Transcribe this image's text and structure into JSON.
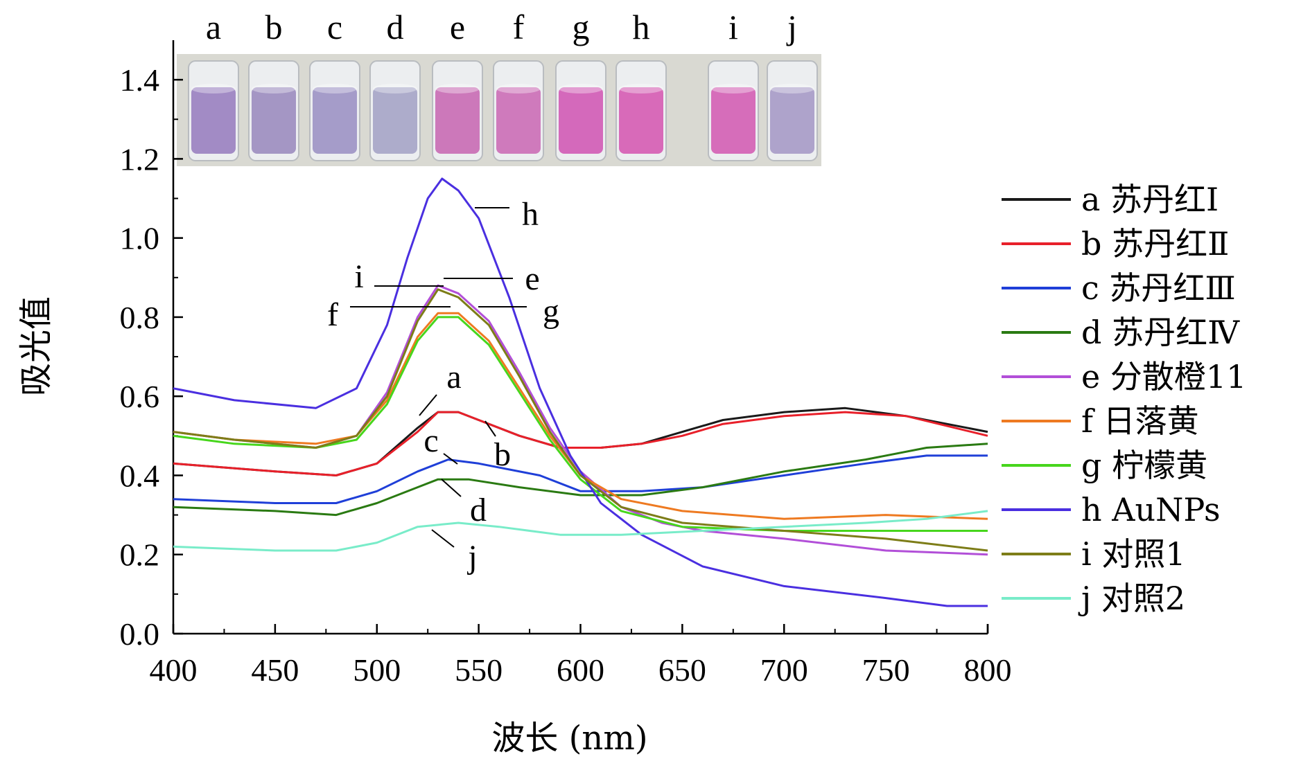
{
  "chart_data": {
    "type": "line",
    "xlabel": "波长 (nm)",
    "ylabel": "吸光值",
    "xlim": [
      400,
      800
    ],
    "ylim": [
      0,
      1.5
    ],
    "x_ticks": [
      "400",
      "450",
      "500",
      "550",
      "600",
      "650",
      "700",
      "750",
      "800"
    ],
    "y_ticks": [
      "0.0",
      "0.2",
      "0.4",
      "0.6",
      "0.8",
      "1.0",
      "1.2",
      "1.4"
    ],
    "grid": false,
    "legend_position": "right",
    "inset_photo": {
      "labels": [
        "a",
        "b",
        "c",
        "d",
        "e",
        "f",
        "g",
        "h",
        "i",
        "j"
      ],
      "vial_colors": [
        "#9a7fc0",
        "#9c8cbf",
        "#9d92c4",
        "#a6a4c6",
        "#c96ab4",
        "#cc6db6",
        "#d25ab5",
        "#d65bb2",
        "#d45eb4",
        "#a79ac6"
      ]
    },
    "series": [
      {
        "name": "a 苏丹红Ⅰ",
        "color": "#1a1a1a",
        "points": [
          [
            400,
            0.43
          ],
          [
            450,
            0.41
          ],
          [
            480,
            0.4
          ],
          [
            500,
            0.43
          ],
          [
            520,
            0.52
          ],
          [
            530,
            0.56
          ],
          [
            540,
            0.56
          ],
          [
            550,
            0.54
          ],
          [
            570,
            0.5
          ],
          [
            590,
            0.47
          ],
          [
            610,
            0.47
          ],
          [
            630,
            0.48
          ],
          [
            650,
            0.51
          ],
          [
            670,
            0.54
          ],
          [
            700,
            0.56
          ],
          [
            730,
            0.57
          ],
          [
            760,
            0.55
          ],
          [
            800,
            0.51
          ]
        ]
      },
      {
        "name": "b 苏丹红Ⅱ",
        "color": "#e8202a",
        "points": [
          [
            400,
            0.43
          ],
          [
            450,
            0.41
          ],
          [
            480,
            0.4
          ],
          [
            500,
            0.43
          ],
          [
            520,
            0.51
          ],
          [
            530,
            0.56
          ],
          [
            540,
            0.56
          ],
          [
            550,
            0.54
          ],
          [
            570,
            0.5
          ],
          [
            590,
            0.47
          ],
          [
            610,
            0.47
          ],
          [
            630,
            0.48
          ],
          [
            650,
            0.5
          ],
          [
            670,
            0.53
          ],
          [
            700,
            0.55
          ],
          [
            730,
            0.56
          ],
          [
            760,
            0.55
          ],
          [
            800,
            0.5
          ]
        ]
      },
      {
        "name": "c 苏丹红Ⅲ",
        "color": "#1f3fd8",
        "points": [
          [
            400,
            0.34
          ],
          [
            450,
            0.33
          ],
          [
            480,
            0.33
          ],
          [
            500,
            0.36
          ],
          [
            520,
            0.41
          ],
          [
            535,
            0.44
          ],
          [
            550,
            0.43
          ],
          [
            580,
            0.4
          ],
          [
            600,
            0.36
          ],
          [
            630,
            0.36
          ],
          [
            660,
            0.37
          ],
          [
            700,
            0.4
          ],
          [
            740,
            0.43
          ],
          [
            770,
            0.45
          ],
          [
            800,
            0.45
          ]
        ]
      },
      {
        "name": "d 苏丹红Ⅳ",
        "color": "#2a7a12",
        "points": [
          [
            400,
            0.32
          ],
          [
            450,
            0.31
          ],
          [
            480,
            0.3
          ],
          [
            500,
            0.33
          ],
          [
            520,
            0.37
          ],
          [
            530,
            0.39
          ],
          [
            545,
            0.39
          ],
          [
            570,
            0.37
          ],
          [
            600,
            0.35
          ],
          [
            630,
            0.35
          ],
          [
            660,
            0.37
          ],
          [
            700,
            0.41
          ],
          [
            740,
            0.44
          ],
          [
            770,
            0.47
          ],
          [
            800,
            0.48
          ]
        ]
      },
      {
        "name": "e 分散橙11",
        "color": "#b24fd8",
        "points": [
          [
            400,
            0.51
          ],
          [
            430,
            0.49
          ],
          [
            470,
            0.47
          ],
          [
            490,
            0.5
          ],
          [
            505,
            0.61
          ],
          [
            520,
            0.8
          ],
          [
            530,
            0.88
          ],
          [
            540,
            0.86
          ],
          [
            555,
            0.79
          ],
          [
            570,
            0.66
          ],
          [
            585,
            0.52
          ],
          [
            600,
            0.41
          ],
          [
            620,
            0.32
          ],
          [
            640,
            0.28
          ],
          [
            660,
            0.26
          ],
          [
            700,
            0.24
          ],
          [
            750,
            0.21
          ],
          [
            800,
            0.2
          ]
        ]
      },
      {
        "name": "f 日落黄",
        "color": "#ee7a21",
        "points": [
          [
            400,
            0.51
          ],
          [
            430,
            0.49
          ],
          [
            470,
            0.48
          ],
          [
            490,
            0.5
          ],
          [
            505,
            0.59
          ],
          [
            520,
            0.75
          ],
          [
            530,
            0.81
          ],
          [
            540,
            0.81
          ],
          [
            555,
            0.74
          ],
          [
            570,
            0.62
          ],
          [
            585,
            0.5
          ],
          [
            600,
            0.4
          ],
          [
            620,
            0.34
          ],
          [
            650,
            0.31
          ],
          [
            700,
            0.29
          ],
          [
            750,
            0.3
          ],
          [
            800,
            0.29
          ]
        ]
      },
      {
        "name": "g 柠檬黄",
        "color": "#47d61c",
        "points": [
          [
            400,
            0.5
          ],
          [
            430,
            0.48
          ],
          [
            470,
            0.47
          ],
          [
            490,
            0.49
          ],
          [
            505,
            0.58
          ],
          [
            520,
            0.74
          ],
          [
            530,
            0.8
          ],
          [
            540,
            0.8
          ],
          [
            555,
            0.73
          ],
          [
            570,
            0.61
          ],
          [
            585,
            0.49
          ],
          [
            600,
            0.39
          ],
          [
            620,
            0.31
          ],
          [
            650,
            0.27
          ],
          [
            700,
            0.26
          ],
          [
            750,
            0.26
          ],
          [
            800,
            0.26
          ]
        ]
      },
      {
        "name": "h AuNPs",
        "color": "#4a2fe0",
        "points": [
          [
            400,
            0.62
          ],
          [
            430,
            0.59
          ],
          [
            470,
            0.57
          ],
          [
            490,
            0.62
          ],
          [
            505,
            0.78
          ],
          [
            515,
            0.95
          ],
          [
            525,
            1.1
          ],
          [
            532,
            1.15
          ],
          [
            540,
            1.12
          ],
          [
            550,
            1.05
          ],
          [
            565,
            0.85
          ],
          [
            580,
            0.62
          ],
          [
            595,
            0.45
          ],
          [
            610,
            0.33
          ],
          [
            630,
            0.25
          ],
          [
            660,
            0.17
          ],
          [
            700,
            0.12
          ],
          [
            750,
            0.09
          ],
          [
            780,
            0.07
          ],
          [
            800,
            0.07
          ]
        ]
      },
      {
        "name": "i 对照1",
        "color": "#7d7d18",
        "points": [
          [
            400,
            0.51
          ],
          [
            430,
            0.49
          ],
          [
            470,
            0.47
          ],
          [
            490,
            0.5
          ],
          [
            505,
            0.6
          ],
          [
            520,
            0.79
          ],
          [
            530,
            0.87
          ],
          [
            540,
            0.85
          ],
          [
            555,
            0.78
          ],
          [
            570,
            0.65
          ],
          [
            585,
            0.51
          ],
          [
            600,
            0.4
          ],
          [
            620,
            0.32
          ],
          [
            650,
            0.28
          ],
          [
            700,
            0.26
          ],
          [
            750,
            0.24
          ],
          [
            800,
            0.21
          ]
        ]
      },
      {
        "name": "j 对照2",
        "color": "#79ecc9",
        "points": [
          [
            400,
            0.22
          ],
          [
            450,
            0.21
          ],
          [
            480,
            0.21
          ],
          [
            500,
            0.23
          ],
          [
            520,
            0.27
          ],
          [
            540,
            0.28
          ],
          [
            560,
            0.27
          ],
          [
            590,
            0.25
          ],
          [
            620,
            0.25
          ],
          [
            660,
            0.26
          ],
          [
            700,
            0.27
          ],
          [
            740,
            0.28
          ],
          [
            770,
            0.29
          ],
          [
            800,
            0.31
          ]
        ]
      }
    ],
    "annotations": [
      {
        "text": "a",
        "series": "a 苏丹红Ⅰ"
      },
      {
        "text": "b",
        "series": "b 苏丹红Ⅱ"
      },
      {
        "text": "c",
        "series": "c 苏丹红Ⅲ"
      },
      {
        "text": "d",
        "series": "d 苏丹红Ⅳ"
      },
      {
        "text": "e",
        "series": "e 分散橙11"
      },
      {
        "text": "f",
        "series": "f 日落黄"
      },
      {
        "text": "g",
        "series": "g 柠檬黄"
      },
      {
        "text": "h",
        "series": "h AuNPs"
      },
      {
        "text": "i",
        "series": "i 对照1"
      },
      {
        "text": "j",
        "series": "j 对照2"
      }
    ]
  }
}
